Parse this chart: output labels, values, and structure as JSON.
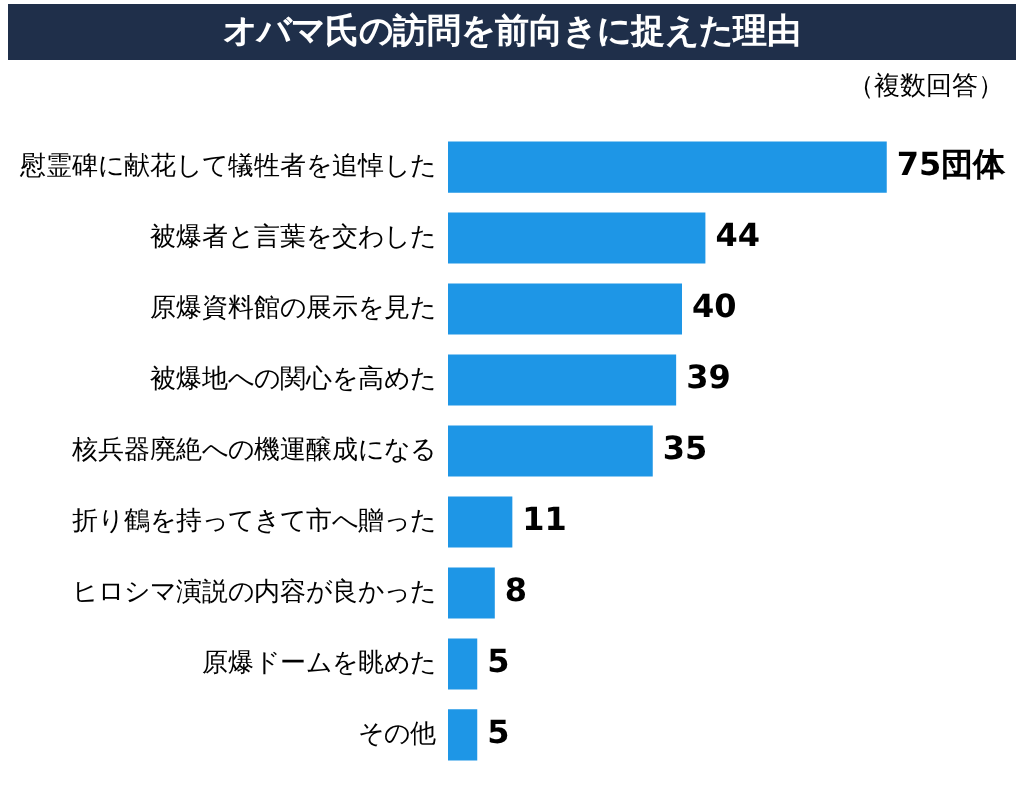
{
  "chart_data": {
    "type": "bar",
    "orientation": "horizontal",
    "title": "オバマ氏の訪問を前向きに捉えた理由",
    "subtitle": "（複数回答）",
    "categories": [
      "慰霊碑に献花して犠牲者を追悼した",
      "被爆者と言葉を交わした",
      "原爆資料館の展示を見た",
      "被爆地への関心を高めた",
      "核兵器廃絶への機運醸成になる",
      "折り鶴を持ってきて市へ贈った",
      "ヒロシマ演説の内容が良かった",
      "原爆ドームを眺めた",
      "その他"
    ],
    "values": [
      75,
      44,
      40,
      39,
      35,
      11,
      8,
      5,
      5
    ],
    "value_labels": [
      "75団体",
      "44",
      "40",
      "39",
      "35",
      "11",
      "8",
      "5",
      "5"
    ],
    "color": "#1e96e6",
    "legend": false
  }
}
